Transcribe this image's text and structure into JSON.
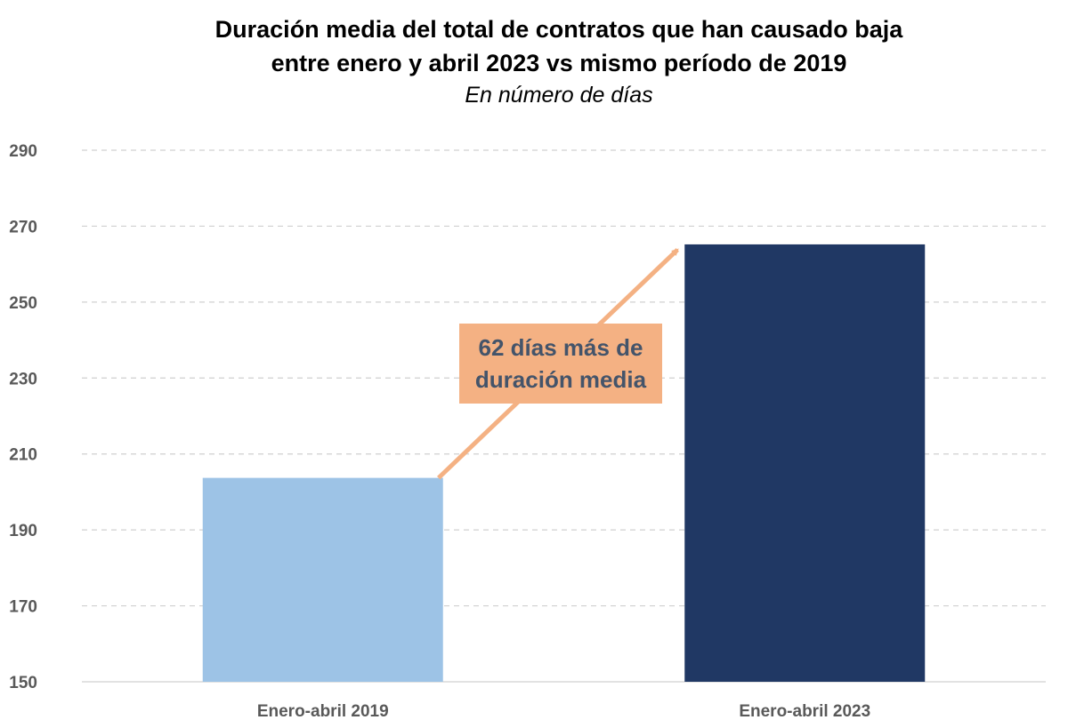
{
  "chart_data": {
    "type": "bar",
    "title_line1": "Duración media del total de contratos que han causado baja",
    "title_line2": "entre enero y abril 2023 vs mismo período de 2019",
    "subtitle": "En número de días",
    "categories": [
      "Enero-abril 2019",
      "Enero-abril 2023"
    ],
    "values": [
      203.7,
      265.2
    ],
    "ylim": [
      150,
      290
    ],
    "yticks": [
      150,
      170,
      190,
      210,
      230,
      250,
      270,
      290
    ],
    "grid": true,
    "gridStyle": "dashed",
    "colors": [
      "#9dc3e6",
      "#203864"
    ],
    "annotation": {
      "line1": "62 días más de",
      "line2": "duración media",
      "box_color": "#f4b183",
      "arrow_color": "#f4b183",
      "text_color": "#44546a"
    }
  }
}
